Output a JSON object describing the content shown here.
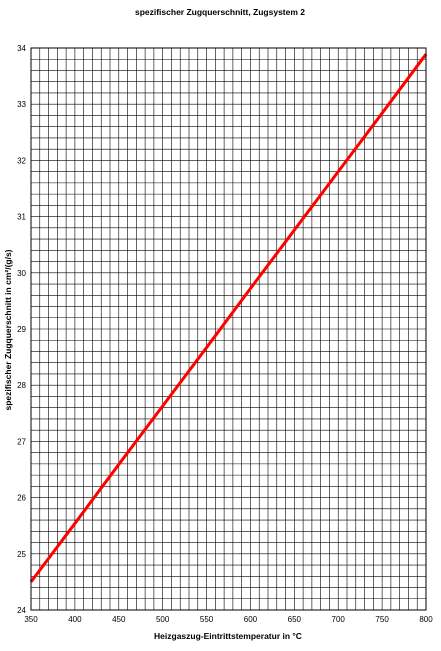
{
  "chart_data": {
    "type": "line",
    "title": "spezifischer Zugquerschnitt, Zugsystem 2",
    "xlabel": "Heizgaszug-Eintrittstemperatur in °C",
    "ylabel": "spezifischer Zugquerschnitt in cm²/(g/s)",
    "xlim": [
      350,
      800
    ],
    "ylim": [
      24,
      34
    ],
    "x_ticks": [
      350,
      400,
      450,
      500,
      550,
      600,
      650,
      700,
      750,
      800
    ],
    "y_ticks": [
      24,
      25,
      26,
      27,
      28,
      29,
      30,
      31,
      32,
      33,
      34
    ],
    "x_minor_step": 10,
    "y_minor_step": 0.2,
    "grid": true,
    "legend": "none",
    "series": [
      {
        "x": [
          350,
          400,
          450,
          500,
          550,
          600,
          650,
          700,
          750,
          800
        ],
        "values": [
          24.5,
          25.54,
          26.59,
          27.63,
          28.67,
          29.72,
          30.76,
          31.8,
          32.84,
          33.89
        ],
        "color": "#ff0000"
      }
    ]
  }
}
